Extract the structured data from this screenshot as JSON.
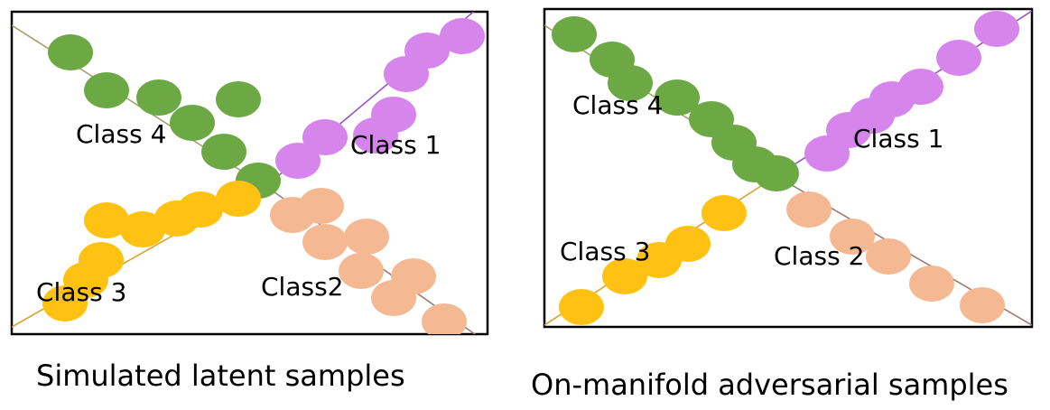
{
  "colors": {
    "class1": "#d685ec",
    "class2": "#f4b992",
    "class3": "#ffc212",
    "class4": "#6ca844",
    "frame": "#000000",
    "line_class1": "#9a55b8",
    "line_class2": "#9c7d70",
    "line_class3": "#d9a12e",
    "line_class4": "#a0a36a"
  },
  "panels": [
    {
      "caption": "Simulated latent samples",
      "labels": {
        "class1": "Class 1",
        "class2": "Class2",
        "class3": "Class 3",
        "class4": "Class 4"
      }
    },
    {
      "caption": "On-manifold adversarial samples",
      "labels": {
        "class1": "Class 1",
        "class2": "Class 2",
        "class3": "Class 3",
        "class4": "Class 4"
      }
    }
  ]
}
